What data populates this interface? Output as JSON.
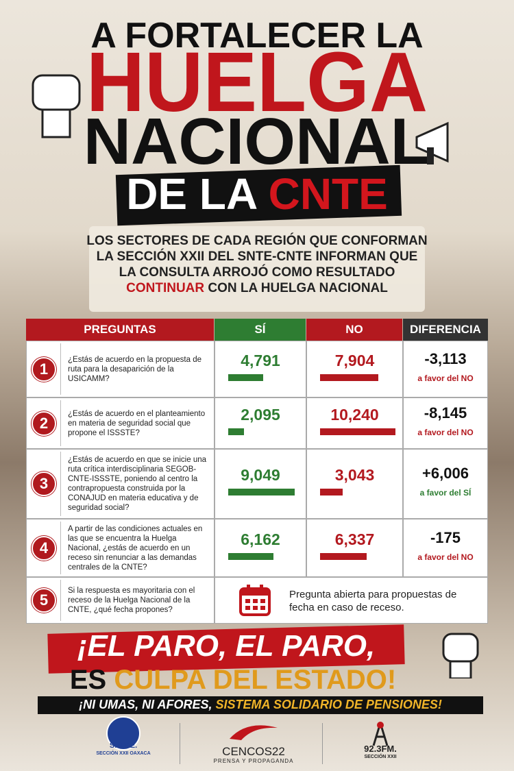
{
  "header": {
    "line1": "A FORTALECER LA",
    "line2": "HUELGA",
    "line3": "NACIONAL",
    "line4a": "DE LA",
    "line4b": "CNTE"
  },
  "intro": {
    "lines": [
      "LOS SECTORES DE CADA REGIÓN QUE CONFORMAN",
      "LA SECCIÓN XXII DEL SNTE-CNTE INFORMAN QUE",
      "LA CONSULTA ARROJÓ COMO RESULTADO"
    ],
    "highlight": "CONTINUAR",
    "after": "CON LA HUELGA NACIONAL"
  },
  "table": {
    "columns": [
      "PREGUNTAS",
      "SÍ",
      "NO",
      "DIFERENCIA"
    ],
    "rows": [
      {
        "number": 1,
        "question": "¿Estás de acuerdo en la propuesta de ruta para la desaparición de la USICAMM?",
        "si": {
          "value": 4791,
          "label": "4,791"
        },
        "no": {
          "value": 7904,
          "label": "7,904"
        },
        "diferencia": {
          "value": -3113,
          "label": "-3,113"
        },
        "nota": "a favor del NO"
      },
      {
        "number": 2,
        "question": "¿Estás de acuerdo en el planteamiento en materia de seguridad social que propone el ISSSTE?",
        "si": {
          "value": 2095,
          "label": "2,095"
        },
        "no": {
          "value": 10240,
          "label": "10,240"
        },
        "diferencia": {
          "value": -8145,
          "label": "-8,145"
        },
        "nota": "a favor del NO"
      },
      {
        "number": 3,
        "question": "¿Estás de acuerdo en que se inicie una ruta crítica interdisciplinaria SEGOB-CNTE-ISSSTE, poniendo al centro la contrapropuesta construida por la CONAJUD en materia educativa y de seguridad social?",
        "si": {
          "value": 9049,
          "label": "9,049"
        },
        "no": {
          "value": 3043,
          "label": "3,043"
        },
        "diferencia": {
          "value": 6006,
          "label": "+6,006"
        },
        "nota": "a favor del SÍ"
      },
      {
        "number": 4,
        "question": "A partir de las condiciones actuales en las que se encuentra la Huelga Nacional, ¿estás de acuerdo en un receso sin renunciar a las demandas centrales de la CNTE?",
        "si": {
          "value": 6162,
          "label": "6,162"
        },
        "no": {
          "value": 6337,
          "label": "6,337"
        },
        "diferencia": -175,
        "nota": "a favor del NO"
      },
      {
        "number": 5,
        "question": "Si la respuesta es mayoritaria con el receso de la Huelga Nacional de la CNTE, ¿qué fecha propones?",
        "nota": "Pregunta abierta para propuestas de fecha en caso de receso."
      }
    ]
  },
  "slogan": {
    "line1": "¡EL PARO, EL PARO,",
    "line2a": "ES",
    "line2b": "CULPA DEL ESTADO!",
    "line3a": "¡NI UMAS, NI AFORES,",
    "line3b": "SISTEMA SOLIDARIO DE PENSIONES!"
  },
  "logos": {
    "snte": "S.N.T.E.",
    "snte_sub": "SECCIÓN XXII OAXACA",
    "cencos": "CENCOS22",
    "cencos_sub": "PRENSA Y PROPAGANDA",
    "radio": "92.3FM.",
    "radio_sub": "SECCIÓN XXII"
  }
}
